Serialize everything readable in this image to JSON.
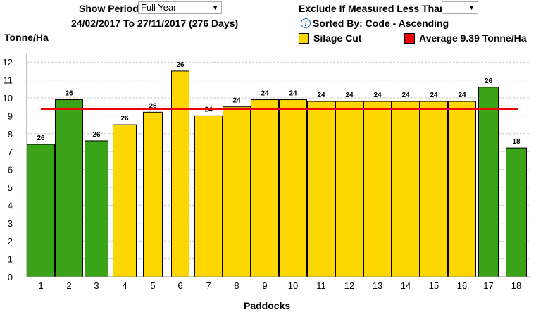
{
  "controls": {
    "show_period_label": "Show Period",
    "show_period_value": "Full Year",
    "exclude_label": "Exclude If Measured Less Than",
    "exclude_value": "-",
    "date_range": "24/02/2017 To 27/11/2017 (276 Days)",
    "sorted_by": "Sorted By: Code - Ascending"
  },
  "legend": [
    {
      "label": "Silage Cut",
      "color": "#ffd700"
    },
    {
      "label": "Average 9.39 Tonne/Ha",
      "color": "#ee0000"
    }
  ],
  "colors": {
    "green": "#3aa318",
    "yellow": "#ffd700",
    "average_line": "#ee0000",
    "grid": "#c8c8c8"
  },
  "chart_data": {
    "type": "bar",
    "ylabel": "Tonne/Ha",
    "xlabel": "Paddocks",
    "ylim": [
      0,
      12.5
    ],
    "yticks": [
      0,
      1,
      2,
      3,
      4,
      5,
      6,
      7,
      8,
      9,
      10,
      11,
      12
    ],
    "grid": true,
    "categories": [
      "1",
      "2",
      "3",
      "4",
      "5",
      "6",
      "7",
      "8",
      "9",
      "10",
      "11",
      "12",
      "13",
      "14",
      "15",
      "16",
      "17",
      "18"
    ],
    "values": [
      7.4,
      9.9,
      7.6,
      8.5,
      9.2,
      11.5,
      9.0,
      9.5,
      9.9,
      9.9,
      9.8,
      9.8,
      9.8,
      9.8,
      9.8,
      9.8,
      10.6,
      7.2
    ],
    "labels": [
      "26",
      "26",
      "26",
      "26",
      "26",
      "26",
      "24",
      "24",
      "24",
      "24",
      "24",
      "24",
      "24",
      "24",
      "24",
      "24",
      "26",
      "18"
    ],
    "colors": [
      "green",
      "green",
      "green",
      "yellow",
      "yellow",
      "yellow",
      "yellow",
      "yellow",
      "yellow",
      "yellow",
      "yellow",
      "yellow",
      "yellow",
      "yellow",
      "yellow",
      "yellow",
      "green",
      "green"
    ],
    "average": 9.39
  }
}
